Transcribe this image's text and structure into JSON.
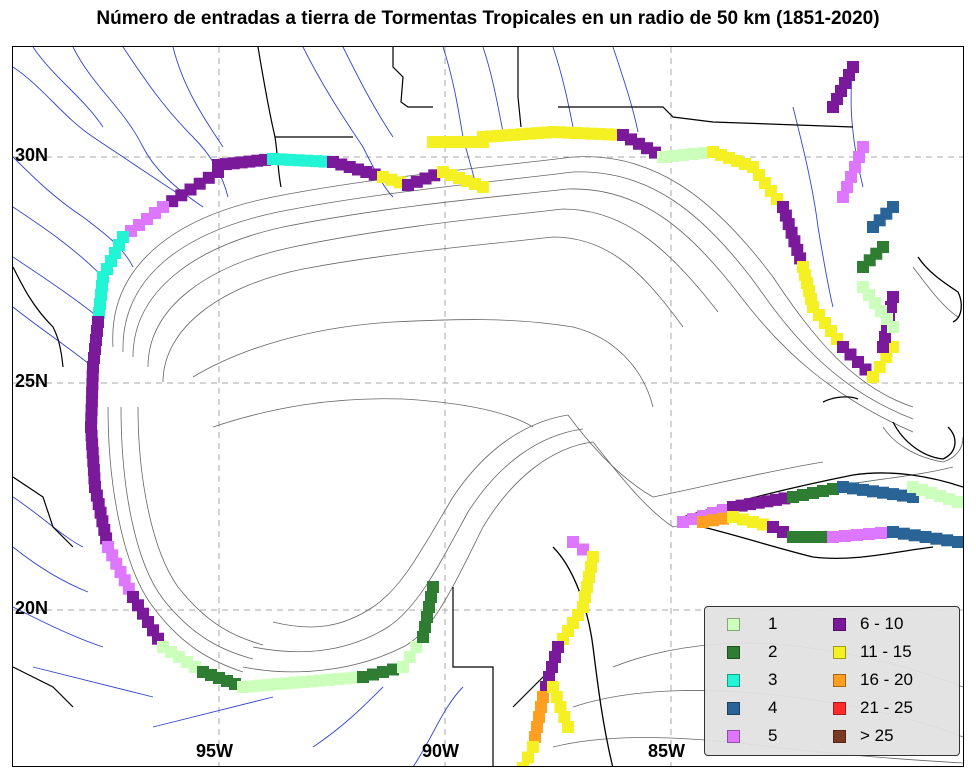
{
  "title": "Número de entradas a tierra de Tormentas Tropicales en un radio de 50 km (1851-2020)",
  "lat_labels": [
    "30N",
    "25N",
    "20N"
  ],
  "lon_labels": [
    "95W",
    "90W",
    "85W"
  ],
  "colors": {
    "land_border": "#000000",
    "rivers": "#3344cc",
    "bathymetry": "#666666",
    "grid": "#aaaaaa"
  },
  "legend": {
    "items": [
      {
        "label": "1",
        "color": "#ccffbb"
      },
      {
        "label": "2",
        "color": "#2e7d32"
      },
      {
        "label": "3",
        "color": "#22f5d5"
      },
      {
        "label": "4",
        "color": "#2a6496"
      },
      {
        "label": "5",
        "color": "#dd77ff"
      },
      {
        "label": "6 - 10",
        "color": "#7a1a9a"
      },
      {
        "label": "11 - 15",
        "color": "#f5f022"
      },
      {
        "label": "16 - 20",
        "color": "#ff9f22"
      },
      {
        "label": "21 - 25",
        "color": "#ff2a2a"
      },
      {
        "label": "> 25",
        "color": "#7a3a22"
      }
    ]
  }
}
